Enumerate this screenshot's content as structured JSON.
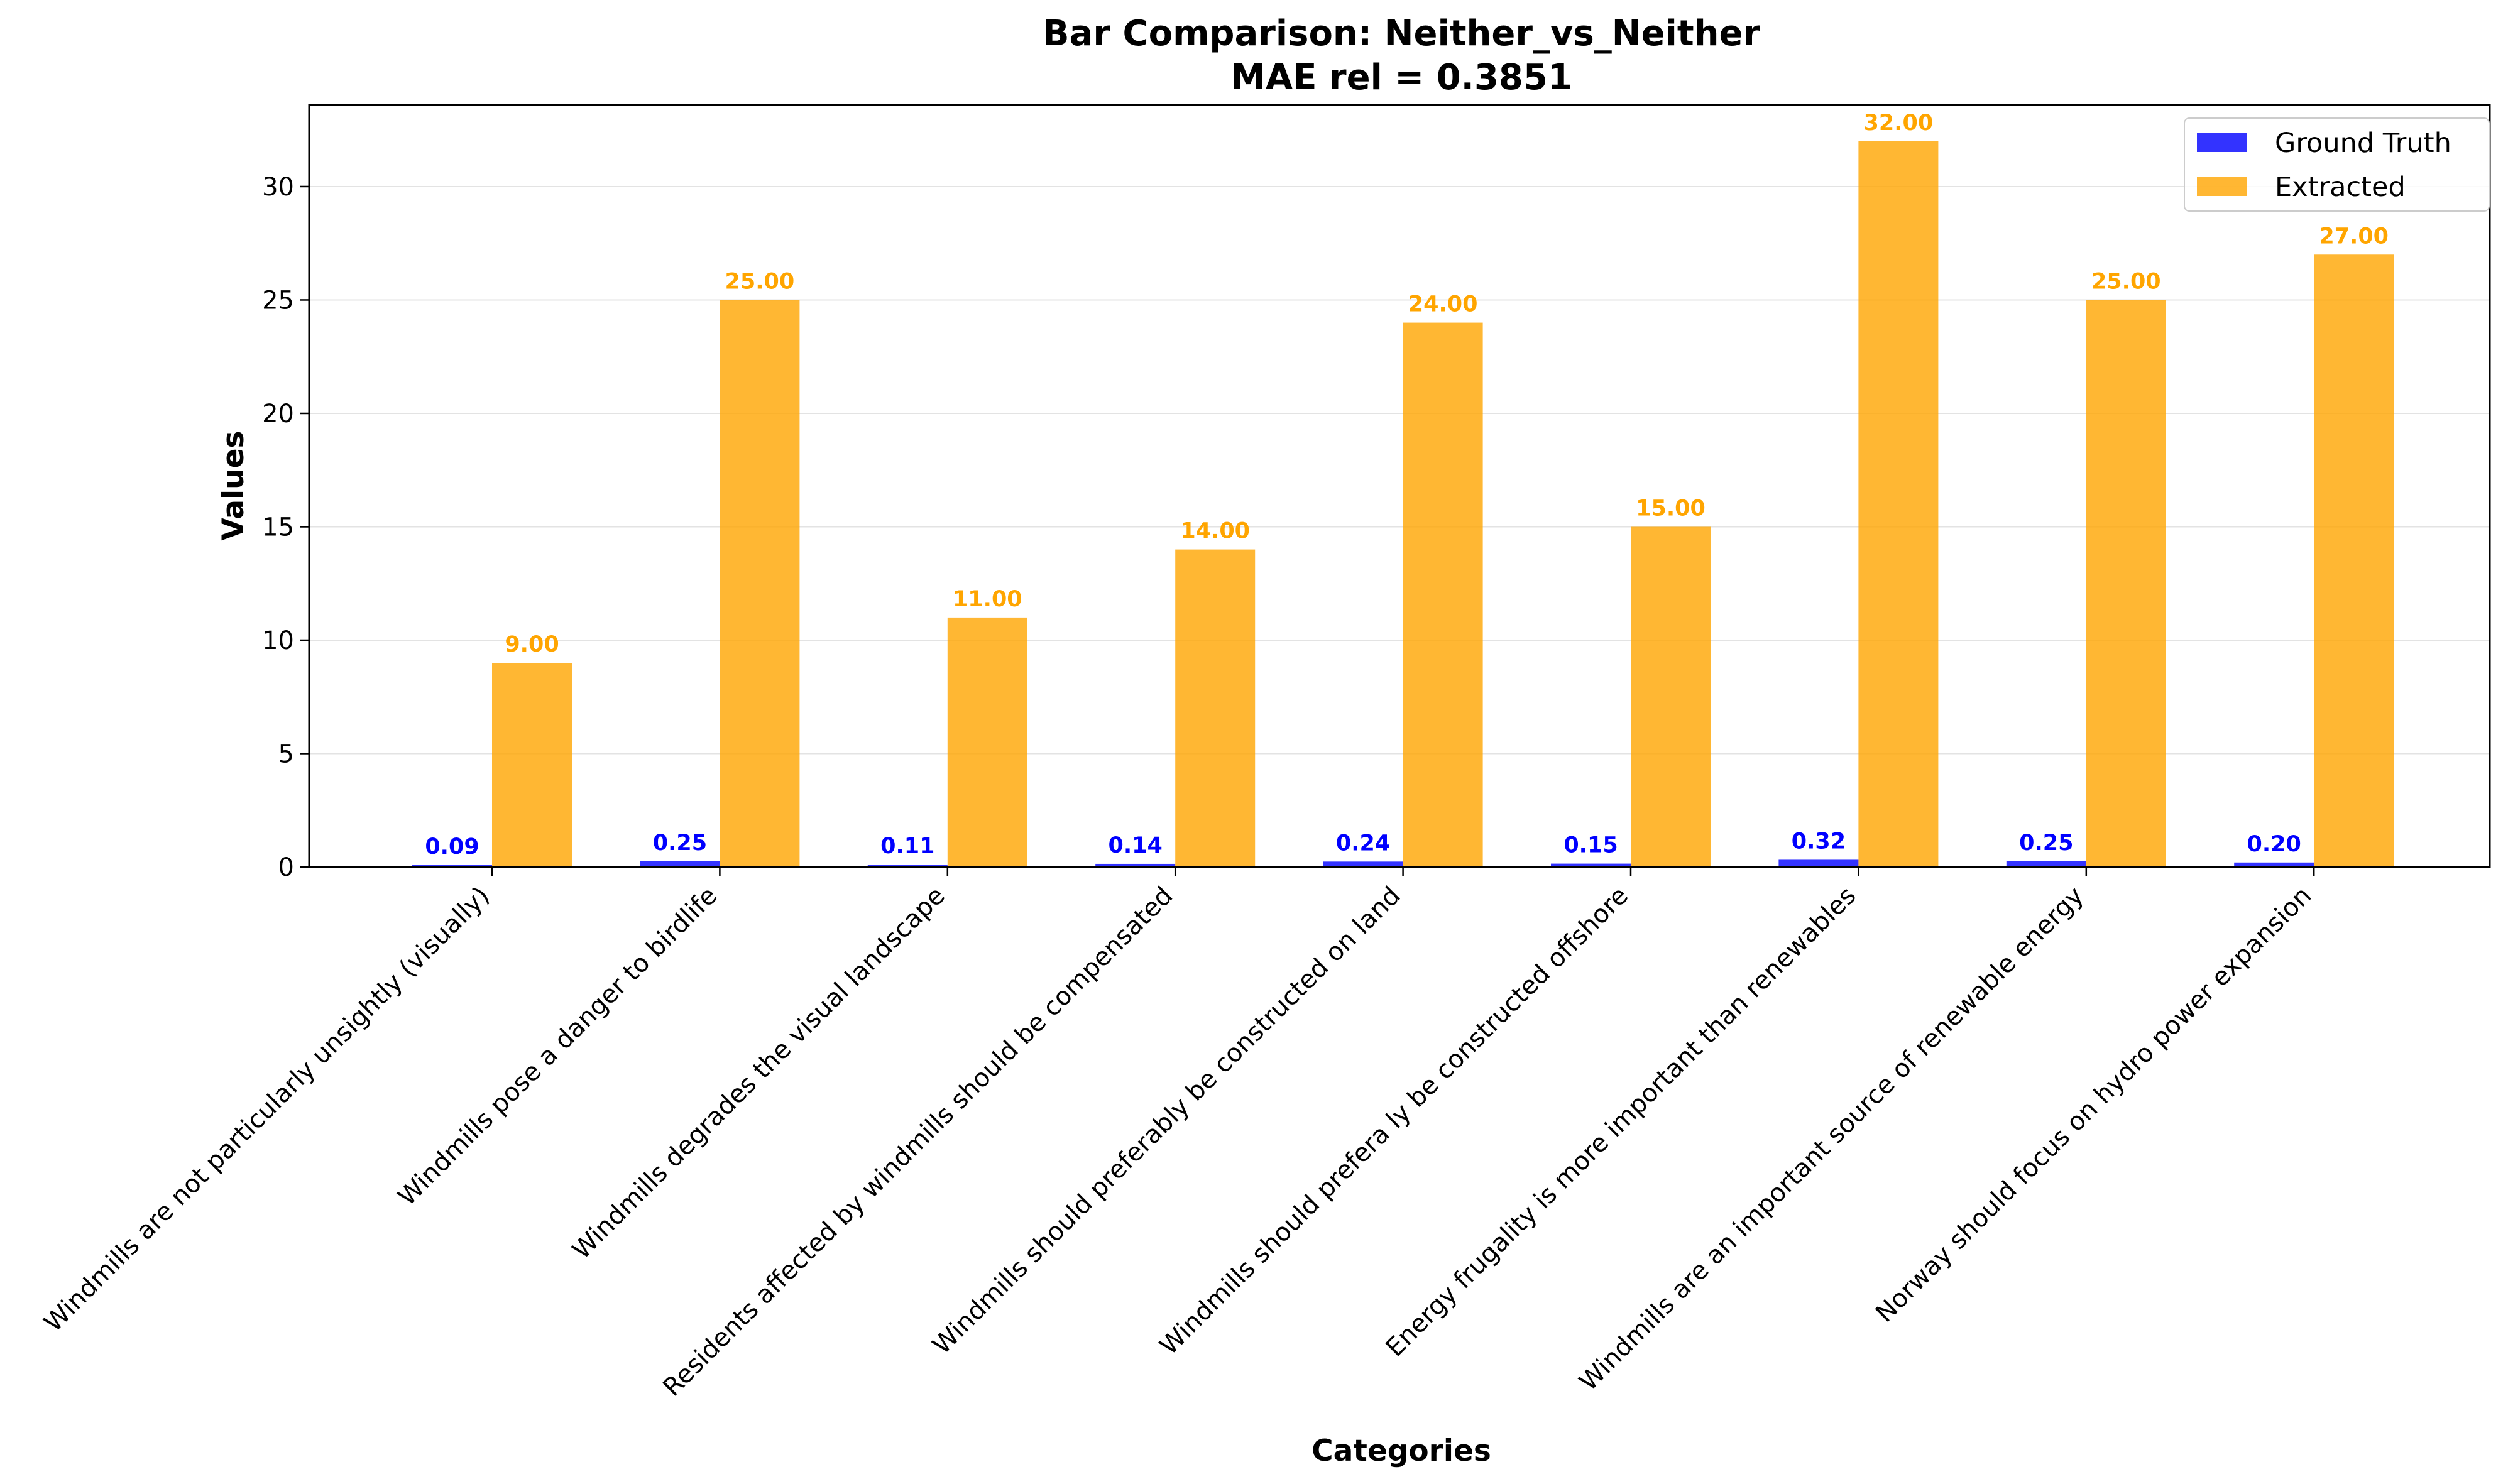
{
  "chart_data": {
    "type": "bar",
    "title": "Bar Comparison: Neither_vs_Neither",
    "subtitle": "MAE rel = 0.3851",
    "xlabel": "Categories",
    "ylabel": "Values",
    "ylim": [
      0,
      33.6
    ],
    "yticks": [
      0,
      5,
      10,
      15,
      20,
      25,
      30
    ],
    "grid": true,
    "legend_position": "top-right",
    "categories": [
      "Windmills are not particularly unsightly (visually)",
      "Windmills pose a danger to birdlife",
      "Windmills degrades the visual landscape",
      "Residents affected by windmills should be compensated",
      "Windmills should preferably be constructed on land",
      "Windmills should prefera ly be constructed offshore",
      "Energy frugality is more important than renewables",
      "Windmills are an important source of renewable energy",
      "Norway should focus on hydro power expansion"
    ],
    "series": [
      {
        "name": "Ground Truth",
        "color": "#0000ff",
        "values": [
          0.09,
          0.25,
          0.11,
          0.14,
          0.24,
          0.15,
          0.32,
          0.25,
          0.2
        ],
        "labels": [
          "0.09",
          "0.25",
          "0.11",
          "0.14",
          "0.24",
          "0.15",
          "0.32",
          "0.25",
          "0.20"
        ]
      },
      {
        "name": "Extracted",
        "color": "#ffa500",
        "values": [
          9,
          25,
          11,
          14,
          24,
          15,
          32,
          25,
          27
        ],
        "labels": [
          "9.00",
          "25.00",
          "11.00",
          "14.00",
          "24.00",
          "15.00",
          "32.00",
          "25.00",
          "27.00"
        ]
      }
    ]
  }
}
